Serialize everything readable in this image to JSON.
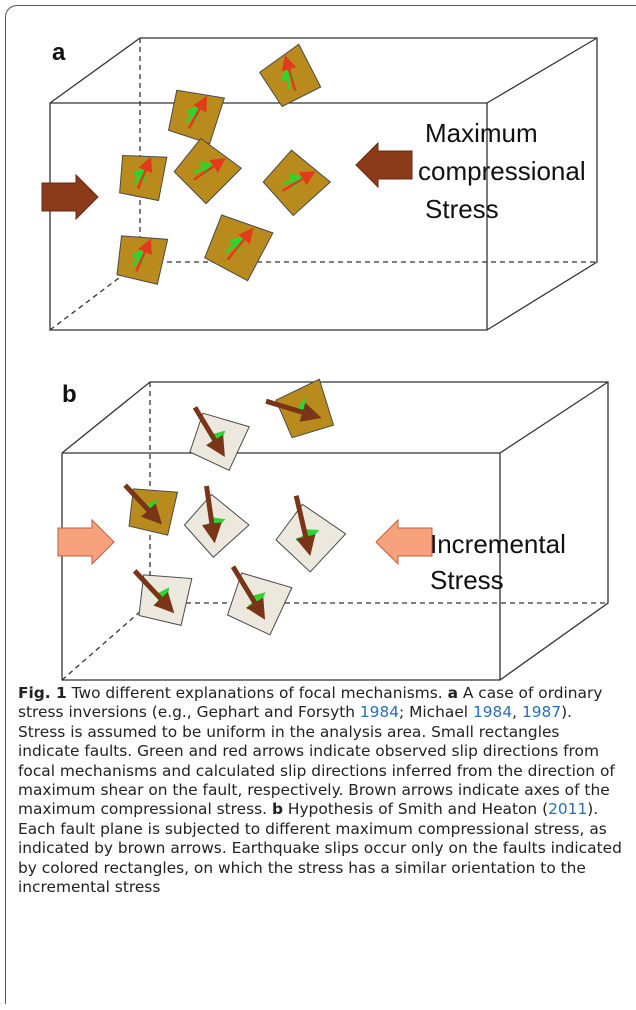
{
  "figure": {
    "panels": [
      {
        "label": "a",
        "annotation": [
          "Maximum",
          "compressional",
          "Stress"
        ]
      },
      {
        "label": "b",
        "annotation": [
          "Incremental",
          "Stress"
        ]
      }
    ],
    "caption": {
      "parts": [
        "Fig. 1",
        " Two different explanations of focal mechanisms. ",
        "a",
        " A case of ordinary stress inversions (e.g., Gephart and Forsyth ",
        "1984",
        "; Michael ",
        "1984",
        ", ",
        "1987",
        "). Stress is assumed to be uniform in the analysis area. Small rectangles indicate faults. Green and red arrows indicate observed slip directions from focal mechanisms and calculated slip directions inferred from the direction of maximum shear on the fault, respectively. Brown arrows indicate axes of the maximum compressional stress. ",
        "b",
        " Hypothesis of Smith and Heaton (",
        "2011",
        "). Each fault plane is subjected to different maximum compressional stress, as indicated by brown arrows. Earthquake slips occur only on the faults indicated by colored rectangles, on which the stress has a similar orientation to the incremental stress"
      ]
    }
  }
}
